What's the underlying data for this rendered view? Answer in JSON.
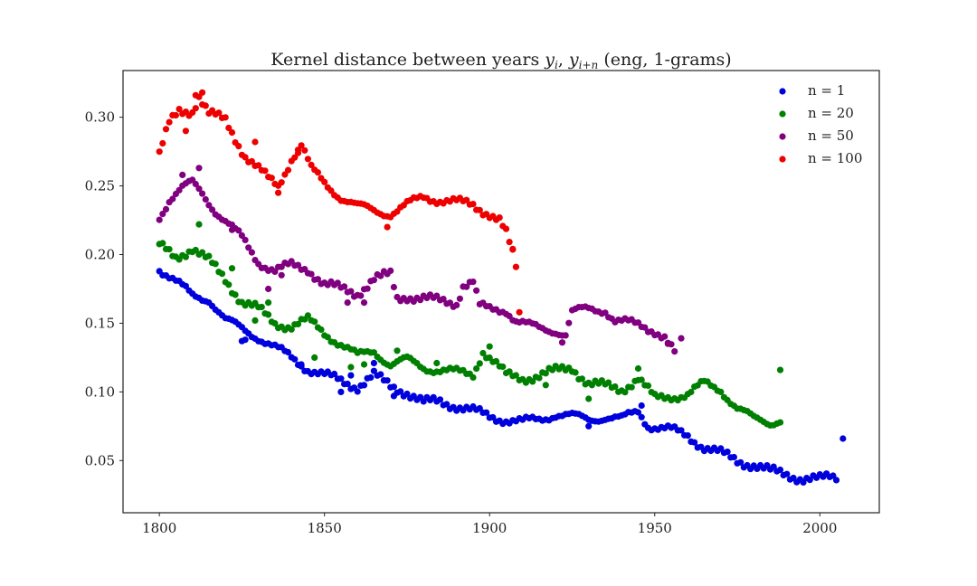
{
  "chart_data": {
    "type": "scatter",
    "title_main": "Kernel distance between years ",
    "title_var1": "y",
    "title_sub1": "i",
    "title_var2": "y",
    "title_sub2": "i+n",
    "title_tail": " (eng, 1-grams)",
    "xlabel": "",
    "ylabel": "",
    "xlim": [
      1789,
      2018
    ],
    "ylim": [
      0.012,
      0.334
    ],
    "xticks": [
      "1800",
      "1850",
      "1900",
      "1950",
      "2000"
    ],
    "yticks": [
      "0.05",
      "0.10",
      "0.15",
      "0.20",
      "0.25",
      "0.30"
    ],
    "grid": false,
    "legend_position": "top-right",
    "series": [
      {
        "name": "n = 1",
        "color": "#0000dd",
        "start_year": 1800,
        "keypoints": [
          [
            1800,
            0.19
          ],
          [
            1805,
            0.18
          ],
          [
            1810,
            0.17
          ],
          [
            1815,
            0.168
          ],
          [
            1820,
            0.152
          ],
          [
            1825,
            0.146
          ],
          [
            1830,
            0.14
          ],
          [
            1835,
            0.132
          ],
          [
            1840,
            0.125
          ],
          [
            1845,
            0.117
          ],
          [
            1850,
            0.112
          ],
          [
            1855,
            0.108
          ],
          [
            1860,
            0.104
          ],
          [
            1865,
            0.112
          ],
          [
            1870,
            0.104
          ],
          [
            1875,
            0.1
          ],
          [
            1880,
            0.092
          ],
          [
            1885,
            0.093
          ],
          [
            1890,
            0.09
          ],
          [
            1895,
            0.086
          ],
          [
            1900,
            0.082
          ],
          [
            1905,
            0.08
          ],
          [
            1910,
            0.078
          ],
          [
            1915,
            0.08
          ],
          [
            1920,
            0.084
          ],
          [
            1925,
            0.082
          ],
          [
            1930,
            0.08
          ],
          [
            1935,
            0.082
          ],
          [
            1940,
            0.08
          ],
          [
            1945,
            0.086
          ],
          [
            1948,
            0.076
          ],
          [
            1955,
            0.072
          ],
          [
            1960,
            0.068
          ],
          [
            1965,
            0.06
          ],
          [
            1970,
            0.055
          ],
          [
            1975,
            0.05
          ],
          [
            1980,
            0.047
          ],
          [
            1985,
            0.042
          ],
          [
            1990,
            0.04
          ],
          [
            1995,
            0.037
          ],
          [
            2000,
            0.036
          ],
          [
            2003,
            0.038
          ],
          [
            2005,
            0.038
          ]
        ],
        "extras": [
          [
            1825,
            0.137
          ],
          [
            1826,
            0.138
          ],
          [
            1843,
            0.12
          ],
          [
            1855,
            0.1
          ],
          [
            1858,
            0.112
          ],
          [
            1865,
            0.121
          ],
          [
            1871,
            0.097
          ],
          [
            1930,
            0.075
          ],
          [
            1946,
            0.09
          ],
          [
            2007,
            0.066
          ]
        ]
      },
      {
        "name": "n = 20",
        "color": "#008000",
        "start_year": 1800,
        "keypoints": [
          [
            1800,
            0.206
          ],
          [
            1805,
            0.198
          ],
          [
            1810,
            0.205
          ],
          [
            1815,
            0.195
          ],
          [
            1820,
            0.182
          ],
          [
            1825,
            0.166
          ],
          [
            1830,
            0.16
          ],
          [
            1835,
            0.15
          ],
          [
            1840,
            0.148
          ],
          [
            1845,
            0.152
          ],
          [
            1850,
            0.143
          ],
          [
            1855,
            0.135
          ],
          [
            1860,
            0.126
          ],
          [
            1865,
            0.13
          ],
          [
            1870,
            0.12
          ],
          [
            1875,
            0.123
          ],
          [
            1880,
            0.118
          ],
          [
            1885,
            0.116
          ],
          [
            1890,
            0.114
          ],
          [
            1895,
            0.113
          ],
          [
            1898,
            0.13
          ],
          [
            1902,
            0.12
          ],
          [
            1905,
            0.112
          ],
          [
            1910,
            0.11
          ],
          [
            1915,
            0.112
          ],
          [
            1920,
            0.115
          ],
          [
            1925,
            0.118
          ],
          [
            1930,
            0.106
          ],
          [
            1935,
            0.104
          ],
          [
            1940,
            0.102
          ],
          [
            1945,
            0.11
          ],
          [
            1950,
            0.095
          ],
          [
            1955,
            0.097
          ],
          [
            1960,
            0.098
          ],
          [
            1965,
            0.106
          ],
          [
            1970,
            0.102
          ],
          [
            1975,
            0.088
          ],
          [
            1980,
            0.08
          ],
          [
            1985,
            0.078
          ],
          [
            1988,
            0.08
          ]
        ],
        "extras": [
          [
            1812,
            0.222
          ],
          [
            1822,
            0.19
          ],
          [
            1829,
            0.152
          ],
          [
            1833,
            0.165
          ],
          [
            1847,
            0.125
          ],
          [
            1858,
            0.118
          ],
          [
            1862,
            0.12
          ],
          [
            1872,
            0.13
          ],
          [
            1884,
            0.121
          ],
          [
            1900,
            0.133
          ],
          [
            1917,
            0.105
          ],
          [
            1930,
            0.095
          ],
          [
            1945,
            0.117
          ],
          [
            1988,
            0.116
          ]
        ]
      },
      {
        "name": "n = 50",
        "color": "#800080",
        "start_year": 1800,
        "keypoints": [
          [
            1800,
            0.228
          ],
          [
            1803,
            0.24
          ],
          [
            1807,
            0.248
          ],
          [
            1810,
            0.252
          ],
          [
            1813,
            0.245
          ],
          [
            1817,
            0.232
          ],
          [
            1820,
            0.224
          ],
          [
            1825,
            0.212
          ],
          [
            1830,
            0.195
          ],
          [
            1835,
            0.188
          ],
          [
            1840,
            0.192
          ],
          [
            1845,
            0.19
          ],
          [
            1850,
            0.178
          ],
          [
            1855,
            0.175
          ],
          [
            1860,
            0.172
          ],
          [
            1865,
            0.182
          ],
          [
            1870,
            0.185
          ],
          [
            1872,
            0.168
          ],
          [
            1875,
            0.17
          ],
          [
            1880,
            0.168
          ],
          [
            1885,
            0.166
          ],
          [
            1890,
            0.165
          ],
          [
            1892,
            0.178
          ],
          [
            1895,
            0.18
          ],
          [
            1897,
            0.162
          ],
          [
            1900,
            0.16
          ],
          [
            1905,
            0.16
          ],
          [
            1908,
            0.152
          ],
          [
            1912,
            0.148
          ],
          [
            1915,
            0.146
          ],
          [
            1920,
            0.145
          ],
          [
            1923,
            0.142
          ],
          [
            1925,
            0.158
          ],
          [
            1930,
            0.16
          ],
          [
            1935,
            0.16
          ],
          [
            1938,
            0.152
          ],
          [
            1942,
            0.15
          ],
          [
            1946,
            0.148
          ],
          [
            1950,
            0.145
          ],
          [
            1953,
            0.14
          ],
          [
            1956,
            0.128
          ]
        ],
        "extras": [
          [
            1807,
            0.258
          ],
          [
            1812,
            0.263
          ],
          [
            1822,
            0.218
          ],
          [
            1833,
            0.175
          ],
          [
            1837,
            0.185
          ],
          [
            1857,
            0.165
          ],
          [
            1862,
            0.165
          ],
          [
            1922,
            0.136
          ],
          [
            1954,
            0.135
          ],
          [
            1958,
            0.139
          ]
        ]
      },
      {
        "name": "n = 100",
        "color": "#ee0000",
        "start_year": 1800,
        "keypoints": [
          [
            1800,
            0.272
          ],
          [
            1803,
            0.295
          ],
          [
            1806,
            0.305
          ],
          [
            1810,
            0.305
          ],
          [
            1812,
            0.315
          ],
          [
            1815,
            0.302
          ],
          [
            1820,
            0.298
          ],
          [
            1823,
            0.285
          ],
          [
            1826,
            0.272
          ],
          [
            1830,
            0.262
          ],
          [
            1833,
            0.255
          ],
          [
            1836,
            0.25
          ],
          [
            1840,
            0.27
          ],
          [
            1843,
            0.28
          ],
          [
            1846,
            0.262
          ],
          [
            1850,
            0.252
          ],
          [
            1855,
            0.242
          ],
          [
            1860,
            0.235
          ],
          [
            1865,
            0.232
          ],
          [
            1870,
            0.23
          ],
          [
            1875,
            0.236
          ],
          [
            1880,
            0.242
          ],
          [
            1885,
            0.24
          ],
          [
            1890,
            0.238
          ],
          [
            1895,
            0.236
          ],
          [
            1900,
            0.23
          ],
          [
            1903,
            0.225
          ],
          [
            1905,
            0.215
          ],
          [
            1907,
            0.2
          ]
        ],
        "extras": [
          [
            1808,
            0.29
          ],
          [
            1811,
            0.316
          ],
          [
            1813,
            0.318
          ],
          [
            1829,
            0.282
          ],
          [
            1836,
            0.245
          ],
          [
            1842,
            0.274
          ],
          [
            1869,
            0.22
          ],
          [
            1907,
            0.204
          ],
          [
            1908,
            0.191
          ],
          [
            1909,
            0.158
          ]
        ]
      }
    ]
  }
}
